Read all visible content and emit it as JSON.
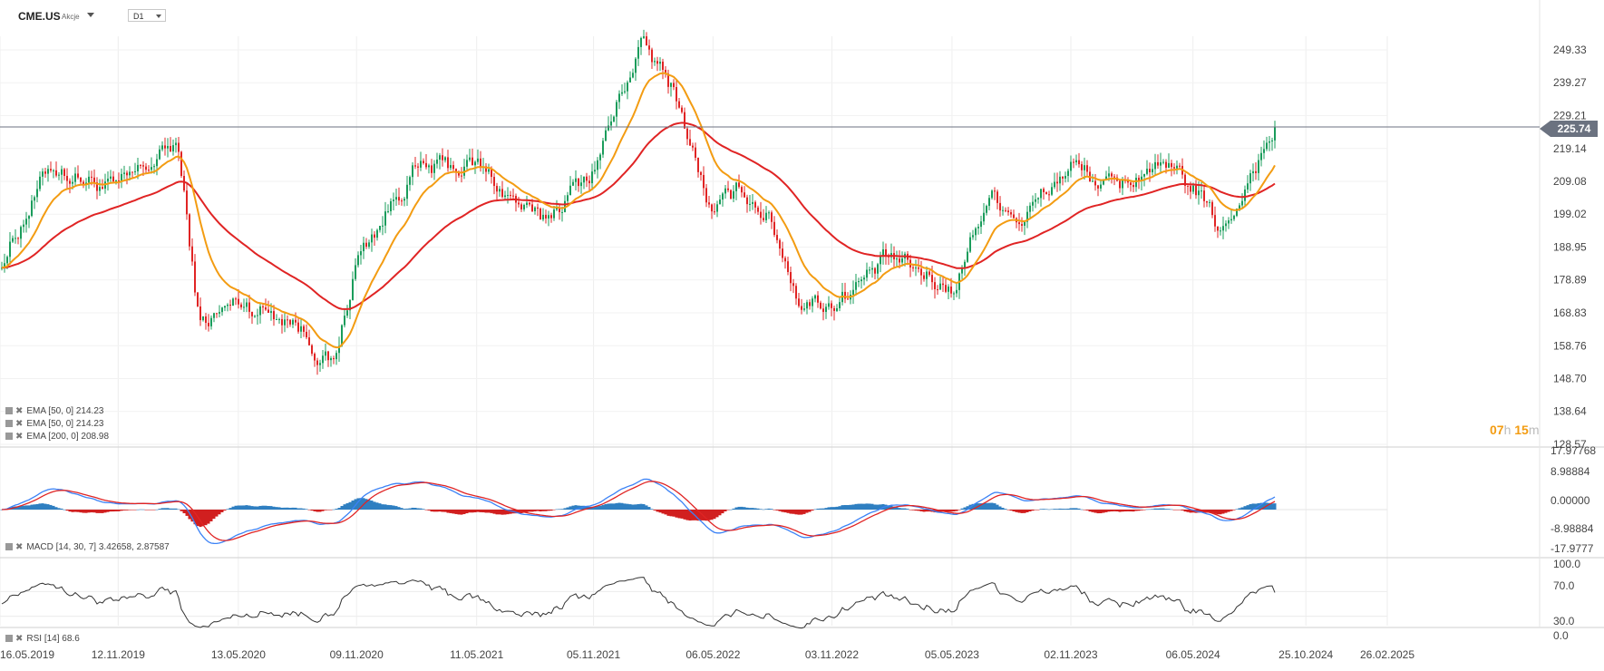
{
  "header": {
    "symbol": "CME.US",
    "instrument_type": "Akcje",
    "timeframe": "D1"
  },
  "price_panel": {
    "y_ticks": [
      "249.33",
      "239.27",
      "229.21",
      "219.14",
      "209.08",
      "199.02",
      "188.95",
      "178.89",
      "168.83",
      "158.76",
      "148.70",
      "138.64",
      "128.57"
    ],
    "current_price": "225.74",
    "indicators": [
      {
        "label": "EMA [50, 0] 214.23",
        "color": "#f39c12"
      },
      {
        "label": "EMA [50, 0] 214.23",
        "color": "#f39c12"
      },
      {
        "label": "EMA [200, 0] 208.98",
        "color": "#e02424"
      }
    ],
    "countdown": {
      "hours": "07",
      "h_unit": "h",
      "minutes": "15",
      "m_unit": "m"
    }
  },
  "macd_panel": {
    "y_ticks": [
      "17.97768",
      "8.98884",
      "0.00000",
      "-8.98884",
      "-17.9777"
    ],
    "label": "MACD [14, 30, 7] 3.42658, 2.87587"
  },
  "rsi_panel": {
    "y_ticks": [
      "100.0",
      "70.0",
      "30.0",
      "0.0"
    ],
    "label": "RSI [14] 68.6"
  },
  "x_axis": {
    "dates": [
      "16.05.2019",
      "12.11.2019",
      "13.05.2020",
      "09.11.2020",
      "11.05.2021",
      "05.11.2021",
      "06.05.2022",
      "03.11.2022",
      "05.05.2023",
      "02.11.2023",
      "06.05.2024",
      "25.10.2024",
      "26.02.2025"
    ]
  },
  "colors": {
    "bull": "#1a9c5b",
    "bear": "#e02424",
    "ema50": "#f39c12",
    "ema200": "#e02424",
    "macd_line": "#3b82f6",
    "signal_line": "#e02424",
    "hist_pos": "#2f7fc1",
    "hist_neg": "#d11f1f",
    "rsi_line": "#333333"
  },
  "chart_data": {
    "type": "candlestick",
    "price_range": [
      128.57,
      254.0
    ],
    "close_path": {
      "dates": [
        "16.05.2019",
        "01.08.2019",
        "12.11.2019",
        "10.02.2020",
        "15.03.2020",
        "13.05.2020",
        "01.08.2020",
        "05.10.2020",
        "09.11.2020",
        "01.02.2021",
        "11.05.2021",
        "15.08.2021",
        "05.11.2021",
        "15.01.2022",
        "10.03.2022",
        "06.05.2022",
        "20.06.2022",
        "01.08.2022",
        "15.09.2022",
        "03.11.2022",
        "01.02.2023",
        "05.05.2023",
        "01.07.2023",
        "20.08.2023",
        "02.11.2023",
        "10.01.2024",
        "01.03.2024",
        "06.05.2024",
        "10.06.2024",
        "25.06.2024",
        "01.08.2024",
        "10.09.2024"
      ],
      "values": [
        184,
        214,
        206,
        221,
        165,
        172,
        168,
        152,
        185,
        212,
        214,
        196,
        213,
        251,
        236,
        198,
        207,
        198,
        173,
        172,
        185,
        176,
        206,
        198,
        214,
        206,
        214,
        207,
        196,
        194,
        212,
        225.74
      ]
    },
    "ema50_end": 214.23,
    "ema200_end": 208.98,
    "macd": {
      "macd_end": 3.42658,
      "signal_end": 2.87587,
      "range": [
        -17.9777,
        17.97768
      ]
    },
    "rsi": {
      "end": 68.6,
      "levels": [
        30,
        70
      ],
      "range": [
        0,
        100
      ]
    }
  }
}
